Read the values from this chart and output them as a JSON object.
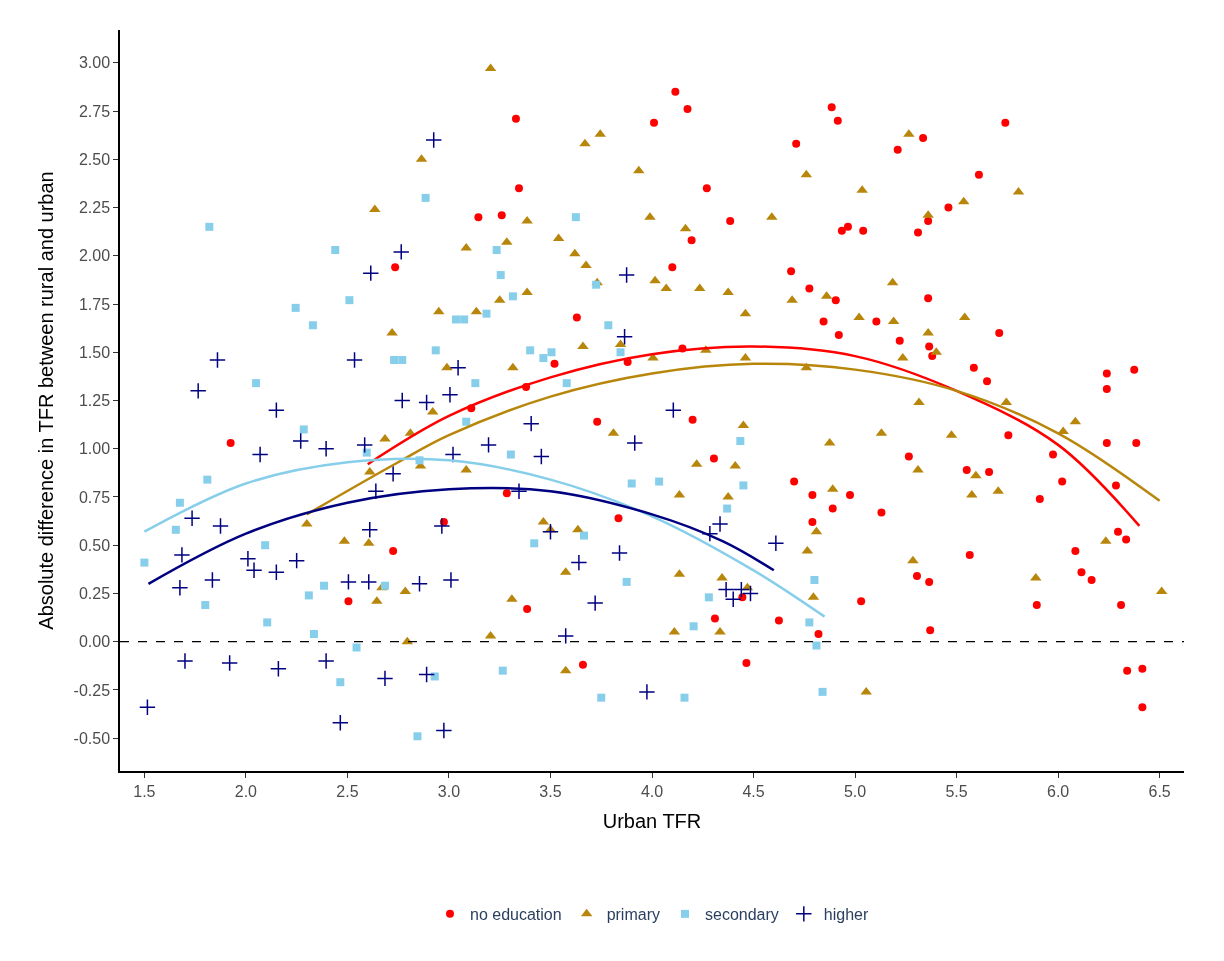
{
  "chart_data": {
    "type": "scatter",
    "xlabel": "Urban TFR",
    "ylabel": "Absolute difference in TFR between rural and urban",
    "xlim": [
      1.38,
      6.62
    ],
    "ylim": [
      -0.67,
      3.17
    ],
    "xticks": [
      1.5,
      {
        "value": 2,
        "label": "2.0"
      },
      2.5,
      {
        "value": 3,
        "label": "3.0"
      },
      3.5,
      {
        "value": 4,
        "label": "4.0"
      },
      4.5,
      {
        "value": 5,
        "label": "5.0"
      },
      5.5,
      {
        "value": 6,
        "label": "6.0"
      },
      6.5
    ],
    "yticks": [
      {
        "value": -0.5,
        "label": "-0.50"
      },
      {
        "value": -0.25,
        "label": "-0.25"
      },
      {
        "value": 0,
        "label": "0.00"
      },
      {
        "value": 0.25,
        "label": "0.25"
      },
      {
        "value": 0.5,
        "label": "0.50"
      },
      {
        "value": 0.75,
        "label": "0.75"
      },
      {
        "value": 1,
        "label": "1.00"
      },
      {
        "value": 1.25,
        "label": "1.25"
      },
      {
        "value": 1.5,
        "label": "1.50"
      },
      {
        "value": 1.75,
        "label": "1.75"
      },
      {
        "value": 2,
        "label": "2.00"
      },
      {
        "value": 2.25,
        "label": "2.25"
      },
      {
        "value": 2.5,
        "label": "2.50"
      },
      {
        "value": 2.75,
        "label": "2.75"
      },
      {
        "value": 3,
        "label": "3.00"
      }
    ],
    "legend": "bottom",
    "ref_lines": [
      {
        "axis": "y",
        "value": 0,
        "color": "#000000",
        "line_style": "dashed"
      }
    ],
    "series": [
      {
        "name": "no education",
        "color": "#ff0000",
        "marker": "circle",
        "x": [
          4.115,
          4.175,
          3.33,
          4.01,
          4.885,
          4.915,
          5.74,
          4.71,
          5.21,
          5.335,
          3.345,
          4.27,
          4.385,
          3.145,
          3.26,
          5.31,
          5.36,
          5.46,
          5.61,
          4.935,
          4.965,
          5.04,
          4.195,
          4.1,
          4.685,
          4.775,
          4.905,
          5.105,
          5.36,
          5.22,
          5.365,
          5.38,
          5.71,
          5.585,
          5.65,
          4.92,
          4.845,
          4.15,
          3.88,
          3.63,
          3.52,
          3.38,
          3.73,
          4.2,
          4.305,
          3.11,
          1.925,
          3.285,
          3.835,
          6.24,
          6.24,
          6.375,
          5.755,
          5.975,
          6.02,
          5.91,
          6.385,
          6.285,
          6.24,
          6.085,
          6.115,
          6.165,
          6.295,
          6.335,
          6.31,
          5.895,
          6.34,
          6.415,
          6.415,
          5.365,
          5.305,
          5.265,
          5.13,
          4.975,
          4.89,
          5.03,
          5.37,
          5.565,
          5.55,
          5.66,
          4.79,
          4.79,
          4.7,
          4.82,
          4.625,
          4.31,
          4.445,
          4.465,
          3.66,
          3.385,
          2.975,
          2.505,
          2.725,
          2.735
        ],
        "values": [
          2.85,
          2.76,
          2.71,
          2.69,
          2.77,
          2.7,
          2.69,
          2.58,
          2.55,
          2.61,
          2.35,
          2.35,
          2.18,
          2.2,
          2.21,
          2.12,
          2.18,
          2.25,
          2.42,
          2.13,
          2.15,
          2.13,
          2.08,
          1.94,
          1.92,
          1.83,
          1.77,
          1.66,
          1.78,
          1.56,
          1.53,
          1.48,
          1.6,
          1.42,
          1.35,
          1.59,
          1.66,
          1.52,
          1.45,
          1.68,
          1.44,
          1.32,
          1.14,
          1.15,
          0.95,
          1.21,
          1.03,
          0.77,
          0.64,
          1.39,
          1.31,
          1.41,
          1.07,
          0.97,
          0.83,
          0.74,
          1.03,
          0.81,
          1.03,
          0.47,
          0.36,
          0.32,
          0.57,
          0.53,
          0.19,
          0.19,
          -0.15,
          -0.14,
          -0.34,
          0.31,
          0.34,
          0.96,
          0.67,
          0.76,
          0.69,
          0.21,
          0.06,
          0.45,
          0.89,
          0.88,
          0.62,
          0.76,
          0.83,
          0.04,
          0.11,
          0.12,
          0.23,
          -0.11,
          -0.12,
          0.17,
          0.62,
          0.21,
          0.47,
          1.94
        ]
      },
      {
        "name": "primary",
        "color": "#b8860b",
        "marker": "triangle",
        "x": [
          3.205,
          2.865,
          3.745,
          3.67,
          5.265,
          5.535,
          5.805,
          4.76,
          3.935,
          3.99,
          4.015,
          4.165,
          4.59,
          5.035,
          5.36,
          2.635,
          3.085,
          3.285,
          3.54,
          3.385,
          3.62,
          3.675,
          3.73,
          4.07,
          4.235,
          4.375,
          4.46,
          4.69,
          4.86,
          5.02,
          5.19,
          5.185,
          5.54,
          5.36,
          2.95,
          3.135,
          3.25,
          3.385,
          2.72,
          2.99,
          3.315,
          3.66,
          3.845,
          4.005,
          4.265,
          4.46,
          4.76,
          4.875,
          4.89,
          5.13,
          5.315,
          5.4,
          5.235,
          5.595,
          5.705,
          5.575,
          5.745,
          6.025,
          6.085,
          5.89,
          6.235,
          6.51,
          5.055,
          5.475,
          5.31,
          5.285,
          4.765,
          4.81,
          4.795,
          4.375,
          4.41,
          4.45,
          4.345,
          4.335,
          4.47,
          4.135,
          4.11,
          4.135,
          4.22,
          3.81,
          3.635,
          3.575,
          3.575,
          3.5,
          3.465,
          3.31,
          3.205,
          3.085,
          2.92,
          2.86,
          2.81,
          2.785,
          2.795,
          2.67,
          2.645,
          2.605,
          2.685,
          2.485,
          2.3,
          2.61
        ],
        "values": [
          2.97,
          2.5,
          2.63,
          2.58,
          2.63,
          2.28,
          2.33,
          2.42,
          2.44,
          2.2,
          1.87,
          2.14,
          2.2,
          2.34,
          2.21,
          2.24,
          2.04,
          2.07,
          2.09,
          2.18,
          2.01,
          1.95,
          1.86,
          1.83,
          1.83,
          1.81,
          1.7,
          1.77,
          1.79,
          1.68,
          1.66,
          1.86,
          1.68,
          1.6,
          1.71,
          1.71,
          1.77,
          1.81,
          1.6,
          1.42,
          1.42,
          1.53,
          1.54,
          1.47,
          1.51,
          1.47,
          1.42,
          1.03,
          0.79,
          1.08,
          1.24,
          1.5,
          1.47,
          0.86,
          0.78,
          0.76,
          1.24,
          1.09,
          1.14,
          0.33,
          0.52,
          0.26,
          -0.26,
          1.07,
          0.89,
          0.42,
          0.47,
          0.57,
          0.23,
          0.75,
          0.91,
          1.12,
          0.33,
          0.05,
          0.28,
          0.35,
          0.05,
          0.76,
          0.92,
          1.08,
          0.58,
          0.36,
          -0.15,
          0.58,
          0.62,
          0.22,
          0.03,
          0.89,
          1.19,
          0.91,
          1.08,
          0.26,
          0.0,
          0.28,
          0.21,
          0.51,
          1.05,
          0.52,
          0.61,
          0.88
        ]
      },
      {
        "name": "secondary",
        "color": "#87ceeb",
        "marker": "square",
        "x": [
          1.5,
          1.82,
          1.81,
          1.8,
          1.655,
          1.675,
          2.05,
          2.095,
          2.105,
          2.245,
          2.285,
          2.31,
          2.33,
          2.335,
          2.44,
          2.385,
          2.465,
          2.51,
          2.545,
          2.595,
          2.685,
          2.73,
          2.77,
          2.845,
          2.855,
          2.885,
          2.93,
          2.935,
          3.035,
          3.075,
          3.13,
          3.085,
          3.185,
          3.235,
          3.255,
          3.265,
          3.305,
          3.315,
          3.4,
          3.42,
          3.465,
          3.505,
          3.58,
          3.625,
          3.665,
          3.75,
          3.725,
          3.785,
          3.875,
          3.845,
          3.9,
          4.035,
          4.16,
          4.205,
          4.28,
          4.37,
          4.435,
          4.45,
          4.775,
          4.8,
          4.84,
          4.81
        ],
        "values": [
          0.41,
          2.15,
          0.84,
          0.19,
          0.58,
          0.72,
          1.34,
          0.5,
          0.1,
          1.73,
          1.1,
          0.24,
          1.64,
          0.04,
          2.03,
          0.29,
          -0.21,
          1.77,
          -0.03,
          0.98,
          0.29,
          1.46,
          1.46,
          -0.49,
          0.94,
          2.3,
          -0.18,
          1.51,
          1.67,
          1.67,
          1.34,
          1.14,
          1.7,
          2.03,
          1.9,
          -0.15,
          0.97,
          1.79,
          1.51,
          0.51,
          1.47,
          1.5,
          1.34,
          2.2,
          0.55,
          -0.29,
          1.85,
          1.64,
          0.31,
          1.5,
          0.82,
          0.83,
          -0.29,
          0.08,
          0.23,
          0.69,
          1.04,
          0.81,
          0.1,
          0.32,
          -0.26,
          -0.02
        ]
      },
      {
        "name": "higher",
        "color": "#000080",
        "marker": "cross",
        "x": [
          1.515,
          1.675,
          1.685,
          1.7,
          1.735,
          1.765,
          1.835,
          1.86,
          1.875,
          1.92,
          2.01,
          2.04,
          2.07,
          2.15,
          2.16,
          2.15,
          2.25,
          2.27,
          2.395,
          2.395,
          2.465,
          2.505,
          2.535,
          2.585,
          2.605,
          2.61,
          2.615,
          2.64,
          2.685,
          2.725,
          2.765,
          2.77,
          2.855,
          2.89,
          2.89,
          2.925,
          2.965,
          2.975,
          3.005,
          3.02,
          3.01,
          3.045,
          3.195,
          3.345,
          3.405,
          3.455,
          3.5,
          3.575,
          3.64,
          3.72,
          3.84,
          3.865,
          3.875,
          3.915,
          3.975,
          4.105,
          4.285,
          4.335,
          4.365,
          4.4,
          4.44,
          4.485,
          4.61
        ],
        "values": [
          -0.34,
          0.28,
          0.45,
          -0.1,
          0.64,
          1.3,
          0.32,
          1.46,
          0.6,
          -0.11,
          0.43,
          0.37,
          0.97,
          0.36,
          -0.14,
          1.2,
          0.42,
          1.04,
          1.0,
          -0.1,
          -0.42,
          0.31,
          1.46,
          1.02,
          0.31,
          0.58,
          1.91,
          0.78,
          -0.19,
          0.87,
          2.02,
          1.25,
          0.3,
          1.24,
          -0.17,
          2.6,
          0.6,
          -0.46,
          1.28,
          0.97,
          0.32,
          1.42,
          1.02,
          0.78,
          1.13,
          0.96,
          0.57,
          0.03,
          0.41,
          0.2,
          0.46,
          1.58,
          1.9,
          1.03,
          -0.26,
          1.2,
          0.56,
          0.61,
          0.27,
          0.22,
          0.27,
          0.25,
          0.51
        ]
      },
      {
        "type": "line",
        "color": "#ff0000",
        "x": [
          2.6,
          3.0,
          3.5,
          4.0,
          4.5,
          5.0,
          5.5,
          6.0,
          6.4
        ],
        "values": [
          0.92,
          1.17,
          1.37,
          1.49,
          1.53,
          1.48,
          1.3,
          1.02,
          0.6
        ]
      },
      {
        "type": "line",
        "color": "#b8860b",
        "x": [
          2.3,
          2.75,
          3.0,
          3.5,
          4.0,
          4.5,
          5.0,
          5.5,
          6.0,
          6.5
        ],
        "values": [
          0.66,
          0.93,
          1.07,
          1.27,
          1.39,
          1.44,
          1.41,
          1.3,
          1.08,
          0.73
        ]
      },
      {
        "type": "line",
        "color": "#87ceeb",
        "x": [
          1.5,
          2.0,
          2.5,
          3.0,
          3.5,
          4.0,
          4.5,
          4.85
        ],
        "values": [
          0.57,
          0.82,
          0.93,
          0.94,
          0.84,
          0.65,
          0.37,
          0.13
        ]
      },
      {
        "type": "line",
        "color": "#000080",
        "x": [
          1.52,
          2.0,
          2.5,
          3.0,
          3.5,
          4.0,
          4.35,
          4.6
        ],
        "values": [
          0.3,
          0.56,
          0.72,
          0.79,
          0.78,
          0.66,
          0.52,
          0.37
        ]
      }
    ]
  }
}
